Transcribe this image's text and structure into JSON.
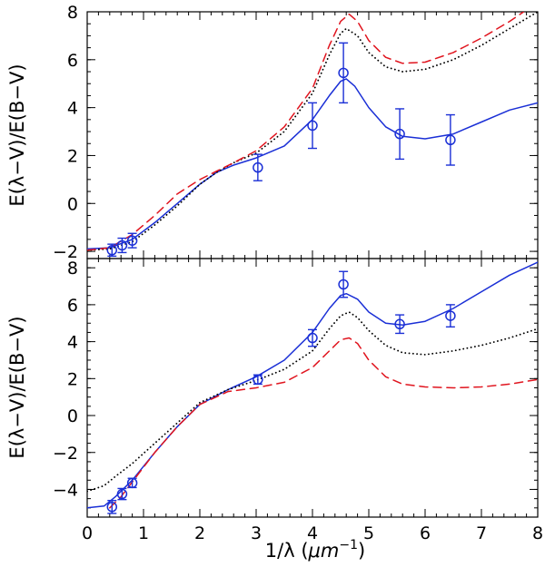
{
  "chart_data": [
    {
      "type": "line",
      "panel": "top",
      "xlabel_parts": [
        "1/λ  (",
        "μm",
        "−1",
        ")"
      ],
      "ylabel": "E(λ−V)/E(B−V)",
      "xlim": [
        0,
        8
      ],
      "ylim": [
        -2.3,
        8
      ],
      "xticks": [
        0,
        1,
        2,
        3,
        4,
        5,
        6,
        7,
        8
      ],
      "yticks": [
        -2,
        0,
        2,
        4,
        6,
        8
      ],
      "ytick_labels": [
        "−2",
        "0",
        "2",
        "4",
        "6",
        "8"
      ],
      "series": [
        {
          "name": "blue solid",
          "style": "solid",
          "color": "#1a2fd6",
          "x": [
            0,
            0.4,
            0.8,
            1.2,
            1.6,
            2.0,
            2.3,
            2.6,
            3.0,
            3.5,
            4.0,
            4.3,
            4.5,
            4.6,
            4.75,
            5.0,
            5.3,
            5.6,
            6.0,
            6.5,
            7.0,
            7.5,
            8.0
          ],
          "y": [
            -1.9,
            -1.85,
            -1.5,
            -0.8,
            0.0,
            0.8,
            1.3,
            1.6,
            1.9,
            2.4,
            3.5,
            4.5,
            5.1,
            5.2,
            4.9,
            4.0,
            3.2,
            2.8,
            2.7,
            2.9,
            3.4,
            3.9,
            4.2
          ]
        },
        {
          "name": "black dotted",
          "style": "dotted",
          "color": "#000000",
          "x": [
            0,
            0.4,
            0.8,
            1.2,
            1.6,
            2.0,
            2.3,
            2.6,
            3.0,
            3.5,
            4.0,
            4.3,
            4.5,
            4.6,
            4.8,
            5.0,
            5.3,
            5.6,
            6.0,
            6.5,
            7.0,
            7.5,
            8.0
          ],
          "y": [
            -1.95,
            -1.9,
            -1.6,
            -0.9,
            -0.1,
            0.8,
            1.3,
            1.7,
            2.1,
            3.0,
            4.6,
            6.2,
            7.1,
            7.3,
            7.0,
            6.3,
            5.7,
            5.5,
            5.6,
            6.0,
            6.6,
            7.3,
            8.0
          ]
        },
        {
          "name": "red dashed",
          "style": "dashed",
          "color": "#e0141e",
          "x": [
            0,
            0.4,
            0.8,
            1.2,
            1.6,
            2.0,
            2.3,
            2.6,
            3.0,
            3.5,
            4.0,
            4.3,
            4.5,
            4.65,
            4.8,
            5.0,
            5.3,
            5.6,
            6.0,
            6.5,
            7.0,
            7.5,
            7.75
          ],
          "y": [
            -1.95,
            -1.85,
            -1.3,
            -0.5,
            0.4,
            1.0,
            1.35,
            1.7,
            2.2,
            3.2,
            4.8,
            6.6,
            7.6,
            7.9,
            7.6,
            6.8,
            6.1,
            5.85,
            5.9,
            6.3,
            6.9,
            7.6,
            8.0
          ]
        }
      ],
      "points": {
        "name": "data",
        "color": "#1a2fd6",
        "x": [
          0.44,
          0.62,
          0.8,
          3.03,
          4.0,
          4.55,
          5.55,
          6.45
        ],
        "y": [
          -1.95,
          -1.75,
          -1.55,
          1.5,
          3.25,
          5.45,
          2.9,
          2.65
        ],
        "err": [
          0.25,
          0.3,
          0.3,
          0.55,
          0.95,
          1.25,
          1.05,
          1.05
        ]
      }
    },
    {
      "type": "line",
      "panel": "bottom",
      "ylabel": "E(λ−V)/E(B−V)",
      "xlim": [
        0,
        8
      ],
      "ylim": [
        -5.5,
        8.5
      ],
      "xticks": [
        0,
        1,
        2,
        3,
        4,
        5,
        6,
        7,
        8
      ],
      "xtick_labels": [
        "0",
        "1",
        "2",
        "3",
        "4",
        "5",
        "6",
        "7",
        "8"
      ],
      "yticks": [
        -4,
        -2,
        0,
        2,
        4,
        6,
        8
      ],
      "ytick_labels": [
        "−4",
        "−2",
        "0",
        "2",
        "4",
        "6",
        "8"
      ],
      "series": [
        {
          "name": "blue solid",
          "style": "solid",
          "color": "#1a2fd6",
          "x": [
            0,
            0.3,
            0.5,
            0.8,
            1.2,
            1.6,
            2.0,
            2.5,
            3.0,
            3.5,
            4.0,
            4.3,
            4.5,
            4.6,
            4.8,
            5.0,
            5.3,
            5.6,
            6.0,
            6.5,
            7.0,
            7.5,
            8.0
          ],
          "y": [
            -5.0,
            -4.9,
            -4.4,
            -3.5,
            -2.0,
            -0.6,
            0.6,
            1.4,
            2.1,
            3.0,
            4.5,
            5.8,
            6.5,
            6.6,
            6.3,
            5.6,
            5.0,
            4.9,
            5.1,
            5.8,
            6.7,
            7.6,
            8.3
          ]
        },
        {
          "name": "black dotted",
          "style": "dotted",
          "color": "#000000",
          "x": [
            0,
            0.3,
            0.5,
            0.8,
            1.2,
            1.6,
            2.0,
            2.5,
            3.0,
            3.5,
            4.0,
            4.3,
            4.5,
            4.65,
            4.8,
            5.0,
            5.3,
            5.6,
            6.0,
            6.5,
            7.0,
            7.5,
            8.0
          ],
          "y": [
            -4.1,
            -3.8,
            -3.3,
            -2.6,
            -1.5,
            -0.4,
            0.7,
            1.4,
            1.9,
            2.5,
            3.5,
            4.7,
            5.4,
            5.6,
            5.3,
            4.6,
            3.8,
            3.4,
            3.3,
            3.5,
            3.8,
            4.2,
            4.7
          ]
        },
        {
          "name": "red dashed",
          "style": "dashed",
          "color": "#e0141e",
          "x": [
            0.4,
            0.6,
            0.8,
            1.2,
            1.6,
            2.0,
            2.5,
            3.0,
            3.5,
            4.0,
            4.3,
            4.5,
            4.65,
            4.8,
            5.0,
            5.3,
            5.6,
            6.0,
            6.5,
            7.0,
            7.5,
            8.0
          ],
          "y": [
            -5.0,
            -4.4,
            -3.6,
            -2.0,
            -0.6,
            0.6,
            1.3,
            1.5,
            1.8,
            2.6,
            3.5,
            4.1,
            4.2,
            3.9,
            3.0,
            2.1,
            1.7,
            1.55,
            1.5,
            1.55,
            1.7,
            1.95
          ]
        }
      ],
      "points": {
        "name": "data",
        "color": "#1a2fd6",
        "x": [
          0.44,
          0.62,
          0.8,
          3.03,
          4.0,
          4.55,
          5.55,
          6.45
        ],
        "y": [
          -4.95,
          -4.25,
          -3.65,
          1.95,
          4.2,
          7.1,
          4.95,
          5.4
        ],
        "err": [
          0.35,
          0.3,
          0.25,
          0.25,
          0.45,
          0.7,
          0.5,
          0.6
        ]
      }
    }
  ]
}
